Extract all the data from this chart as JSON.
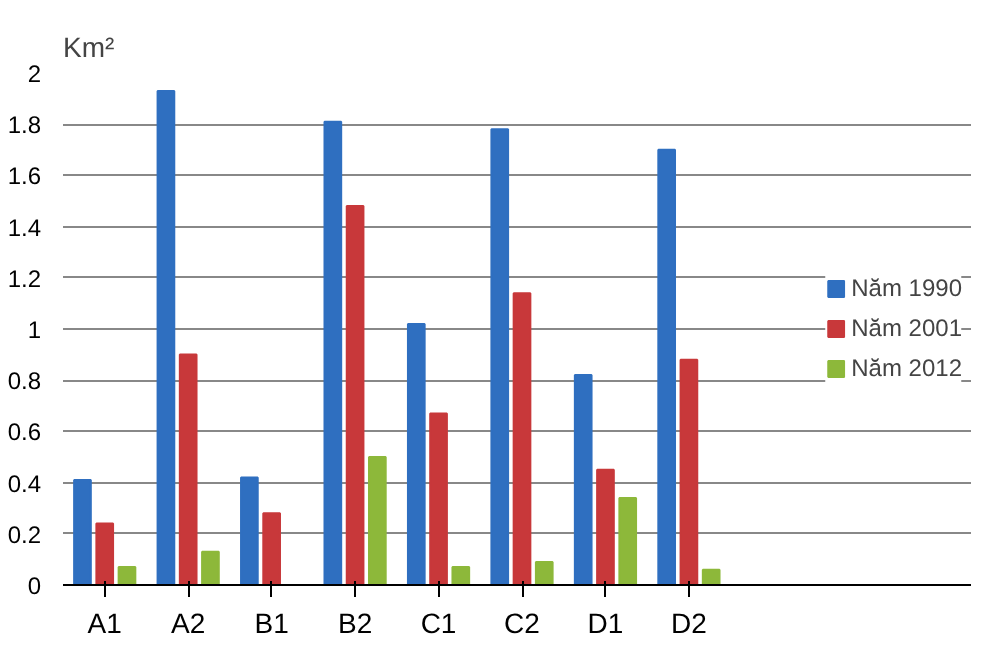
{
  "chart_data": {
    "type": "bar",
    "ylabel": "Km²",
    "categories": [
      "A1",
      "A2",
      "B1",
      "B2",
      "C1",
      "C2",
      "D1",
      "D2"
    ],
    "series": [
      {
        "name": "Năm 1990",
        "color": "#2f6fc0",
        "values": [
          0.41,
          1.93,
          0.42,
          1.81,
          1.02,
          1.78,
          0.82,
          1.7
        ]
      },
      {
        "name": "Năm 2001",
        "color": "#c8383a",
        "values": [
          0.24,
          0.9,
          0.28,
          1.48,
          0.67,
          1.14,
          0.45,
          0.88
        ]
      },
      {
        "name": "Năm 2012",
        "color": "#8db83a",
        "values": [
          0.07,
          0.13,
          0,
          0.5,
          0.07,
          0.09,
          0.34,
          0.06
        ]
      }
    ],
    "ylim": [
      0,
      2
    ],
    "yticks": [
      0,
      0.2,
      0.4,
      0.6,
      0.8,
      1,
      1.2,
      1.4,
      1.6,
      1.8,
      2
    ],
    "grid": "y",
    "legend": "right"
  }
}
